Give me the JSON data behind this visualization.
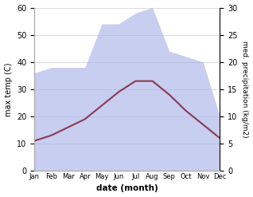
{
  "months": [
    "Jan",
    "Feb",
    "Mar",
    "Apr",
    "May",
    "Jun",
    "Jul",
    "Aug",
    "Sep",
    "Oct",
    "Nov",
    "Dec"
  ],
  "max_temp": [
    11,
    13,
    16,
    19,
    24,
    29,
    33,
    33,
    28,
    22,
    17,
    12
  ],
  "precipitation": [
    18,
    19,
    19,
    19,
    27,
    27,
    29,
    30,
    22,
    21,
    20,
    10
  ],
  "temp_color": "#8B3A52",
  "precip_color": "#aab4e8",
  "precip_alpha": 0.65,
  "xlabel": "date (month)",
  "ylabel_left": "max temp (C)",
  "ylabel_right": "med. precipitation (kg/m2)",
  "ylim_left": [
    0,
    60
  ],
  "ylim_right": [
    0,
    30
  ],
  "grid_color": "#cccccc",
  "line_width": 1.5
}
